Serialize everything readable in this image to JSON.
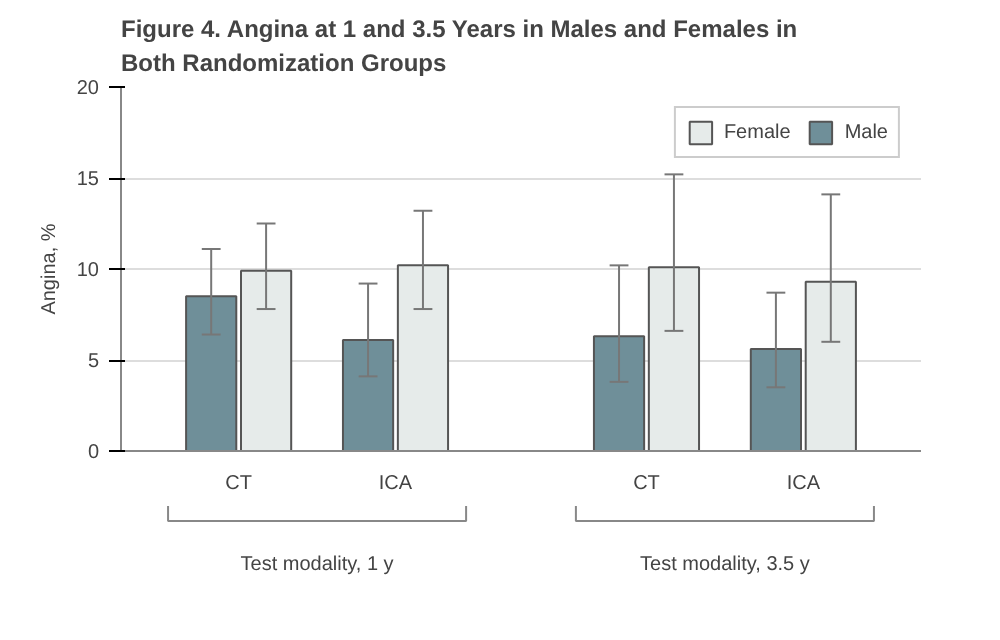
{
  "chart_data": {
    "type": "bar",
    "title": "Figure 4. Angina at 1 and 3.5 Years in Males and Females in Both Randomization Groups",
    "categories": [
      "CT",
      "ICA",
      "CT",
      "ICA"
    ],
    "series": [
      {
        "name": "Male",
        "color": "#6f8f99",
        "values": [
          8.5,
          6.1,
          6.3,
          5.6
        ],
        "errors": [
          [
            6.4,
            11.1
          ],
          [
            4.1,
            9.2
          ],
          [
            3.8,
            10.2
          ],
          [
            3.5,
            8.7
          ]
        ]
      },
      {
        "name": "Female",
        "color": "#e6ebea",
        "values": [
          9.9,
          10.2,
          10.1,
          9.3
        ],
        "errors": [
          [
            7.8,
            12.5
          ],
          [
            7.8,
            13.2
          ],
          [
            6.6,
            15.2
          ],
          [
            6.0,
            14.1
          ]
        ]
      }
    ],
    "ylabel": "Angina, %",
    "ylim": [
      0,
      20
    ],
    "yticks": [
      0,
      5,
      10,
      15,
      20
    ],
    "grid": "y",
    "legend": "top right",
    "annotations": [
      "Test modality, 1 y",
      "Test modality, 3.5 y"
    ]
  }
}
